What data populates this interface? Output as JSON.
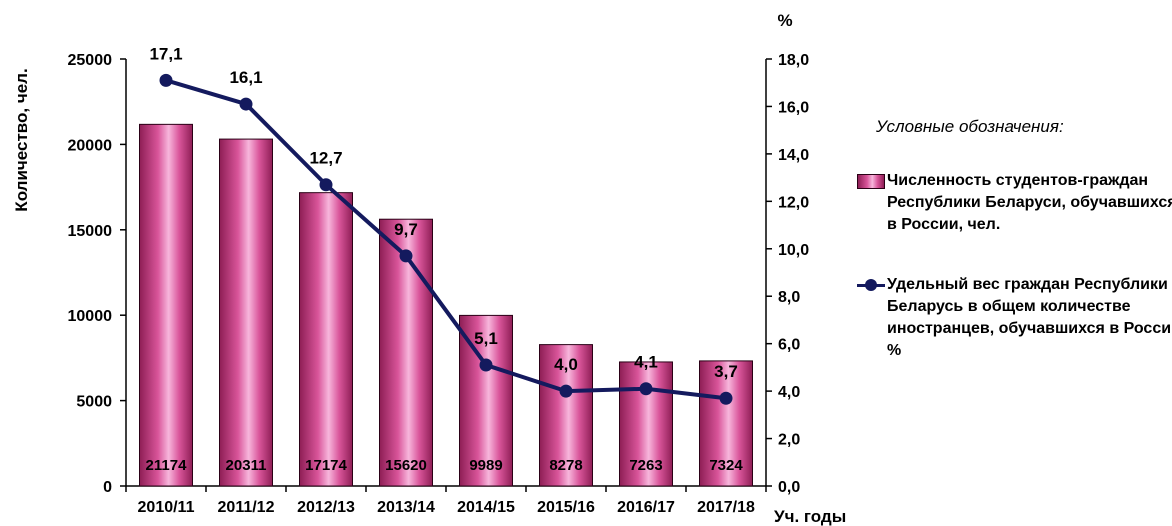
{
  "chart_data": {
    "type": "bar+line",
    "categories": [
      "2010/11",
      "2011/12",
      "2012/13",
      "2013/14",
      "2014/15",
      "2015/16",
      "2016/17",
      "2017/18"
    ],
    "series": [
      {
        "name": "Численность студентов-граждан Республики Беларуси, обучавшихся в России, чел.",
        "type": "bar",
        "axis": "left",
        "values": [
          21174,
          20311,
          17174,
          15620,
          9989,
          8278,
          7263,
          7324
        ],
        "labels": [
          "21174",
          "20311",
          "17174",
          "15620",
          "9989",
          "8278",
          "7263",
          "7324"
        ]
      },
      {
        "name": "Удельный вес граждан Республики Беларусь в общем количестве иностранцев, обучавшихся в России, %",
        "type": "line",
        "axis": "right",
        "values": [
          17.1,
          16.1,
          12.7,
          9.7,
          5.1,
          4.0,
          4.1,
          3.7
        ],
        "labels": [
          "17,1",
          "16,1",
          "12,7",
          "9,7",
          "5,1",
          "4,0",
          "4,1",
          "3,7"
        ]
      }
    ],
    "ylabel": "Количество, чел.",
    "y2label": "%",
    "xlabel": "Уч. годы",
    "ylim": [
      0,
      25000
    ],
    "y2lim": [
      0,
      18
    ],
    "yticks": [
      "0",
      "5000",
      "10000",
      "15000",
      "20000",
      "25000"
    ],
    "y2ticks": [
      "0,0",
      "2,0",
      "4,0",
      "6,0",
      "8,0",
      "10,0",
      "12,0",
      "14,0",
      "16,0",
      "18,0"
    ],
    "legend_title": "Условные обозначения:",
    "legend_placement": "right",
    "grid": false
  },
  "colors": {
    "bar": "#d9559a",
    "bar_dark": "#8e1e55",
    "line": "#141a5e"
  },
  "legend": {
    "title": "Условные обозначения:",
    "bar_text": "Численность студентов-граждан Республики Беларуси, обучавшихся в России, чел.",
    "line_text": "Удельный вес граждан Республики Беларусь в общем количестве иностранцев, обучавшихся в России, %"
  }
}
